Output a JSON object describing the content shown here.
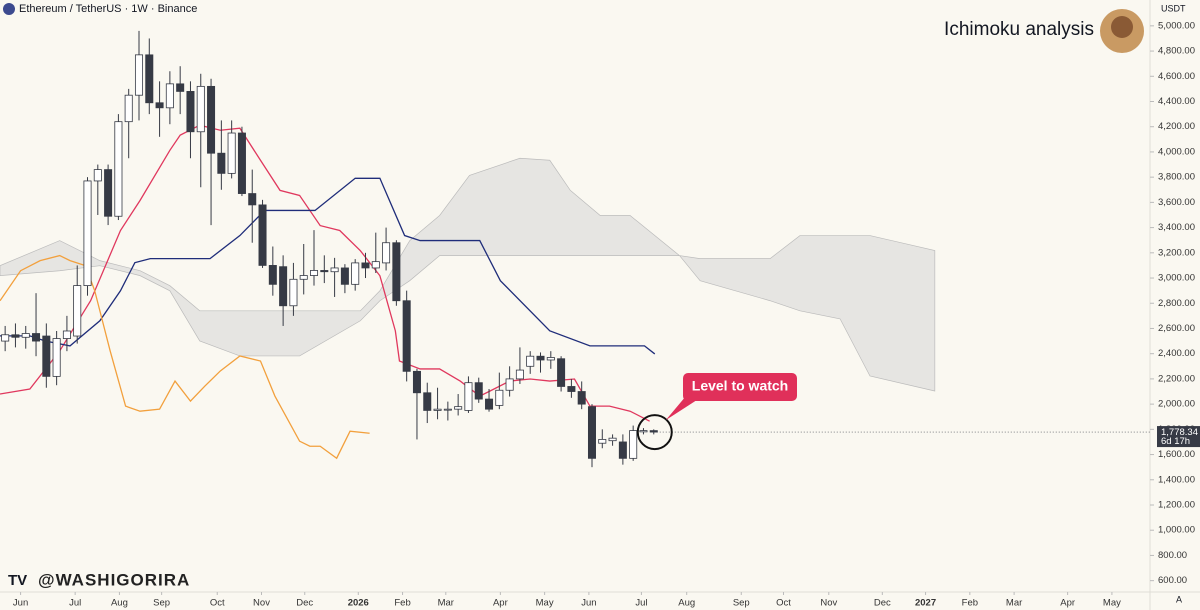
{
  "chart_data": {
    "type": "candlestick",
    "title": "Ichimoku analysis",
    "symbol": "Ethereum / TetherUS · 1W · Binance",
    "currency": "USDT",
    "watermark": "@WASHIGORIRA",
    "scale_mode": "A",
    "annotation": "Level to watch",
    "annotation_color": "#e0305a",
    "up_color": "#ffffff",
    "down_color": "#363a45",
    "border_color": "#363a45",
    "open": [
      2500,
      2550,
      2530,
      2560,
      2540,
      2220,
      2520,
      2540,
      2940,
      3770,
      3860,
      3490,
      4240,
      4450,
      4770,
      4390,
      4350,
      4540,
      4480,
      4160,
      4520,
      3990,
      3830,
      4150,
      3670,
      3580,
      3100,
      3090,
      2780,
      2990,
      3020,
      3060,
      3050,
      3080,
      2950,
      3120,
      3080,
      3120,
      3280,
      2820,
      2260,
      2090,
      1950,
      1960,
      1960,
      1950,
      2170,
      2040,
      1990,
      2110,
      2200,
      2300,
      2380,
      2350,
      2360,
      2140,
      2100,
      1980,
      1690,
      1710,
      1700,
      1570,
      1780,
      1790
    ],
    "high": [
      2620,
      2640,
      2620,
      2880,
      2640,
      2580,
      2700,
      3100,
      3800,
      3900,
      3900,
      4300,
      4500,
      4960,
      4900,
      4560,
      4640,
      4680,
      4560,
      4620,
      4580,
      4250,
      4250,
      4200,
      3860,
      3620,
      3250,
      3180,
      3120,
      3270,
      3380,
      3180,
      3160,
      3110,
      3150,
      3200,
      3360,
      3400,
      3300,
      2900,
      2280,
      2170,
      2130,
      2020,
      2080,
      2220,
      2210,
      2120,
      2250,
      2300,
      2450,
      2420,
      2410,
      2420,
      2380,
      2200,
      2180,
      2000,
      1800,
      1760,
      1760,
      1830,
      1810,
      1800
    ],
    "low": [
      2420,
      2450,
      2440,
      2380,
      2130,
      2150,
      2420,
      2480,
      2860,
      3500,
      3420,
      3460,
      3950,
      4250,
      4300,
      4120,
      4220,
      4300,
      3950,
      3720,
      3420,
      3700,
      3790,
      3650,
      3280,
      3080,
      2860,
      2620,
      2700,
      2870,
      2940,
      2960,
      2850,
      2880,
      2900,
      3000,
      3040,
      3060,
      2780,
      2180,
      1720,
      1850,
      1880,
      1870,
      1910,
      1930,
      2010,
      1940,
      1960,
      2060,
      2160,
      2240,
      2250,
      2280,
      2100,
      2050,
      1960,
      1500,
      1650,
      1670,
      1520,
      1550,
      1760,
      1760
    ],
    "close": [
      2550,
      2530,
      2560,
      2500,
      2220,
      2520,
      2580,
      2940,
      3770,
      3860,
      3490,
      4240,
      4450,
      4770,
      4390,
      4350,
      4540,
      4480,
      4160,
      4520,
      3990,
      3830,
      4150,
      3670,
      3580,
      3100,
      2950,
      2780,
      2990,
      3020,
      3060,
      3050,
      3080,
      2950,
      3120,
      3080,
      3130,
      3280,
      2820,
      2260,
      2090,
      1950,
      1960,
      1960,
      1980,
      2170,
      2040,
      1960,
      2110,
      2200,
      2270,
      2380,
      2350,
      2370,
      2140,
      2100,
      2000,
      1570,
      1720,
      1730,
      1570,
      1790,
      1790,
      1778.34
    ],
    "last_price": {
      "value": 1778.34,
      "label": "1,778.34"
    },
    "countdown": "6d 17h",
    "lines": [
      {
        "color": "#e0385e",
        "x": [
          -0.5,
          2.4,
          5.3,
          8.3,
          11.2,
          13.1,
          16.0,
          17.0,
          18.9,
          20.9,
          22.8,
          24.8,
          26.7,
          28.6,
          30.6,
          32.5,
          34.5,
          36.4,
          37.9,
          38.3,
          40.3,
          42.2,
          44.2,
          46.1,
          47.1,
          49.0,
          51.0,
          52.9,
          55.3,
          56.8,
          58.7,
          60.7,
          62.6
        ],
        "values": [
          2080,
          2120,
          2422,
          2820,
          3377,
          3615,
          4013,
          4133,
          4212,
          4172,
          4188,
          3934,
          3695,
          3655,
          3416,
          3377,
          3217,
          3018,
          2581,
          2342,
          2279,
          2279,
          2183,
          2064,
          2104,
          2183,
          2199,
          2183,
          2199,
          1984,
          1984,
          1944,
          1865
        ]
      },
      {
        "color": "#1f2d7a",
        "x": [
          -0.5,
          2.4,
          3.9,
          6.3,
          9.2,
          11.2,
          12.6,
          14.1,
          19.9,
          22.8,
          25.2,
          30.1,
          34.0,
          36.4,
          38.8,
          40.3,
          46.1,
          48.1,
          52.9,
          56.8,
          62.1,
          63.1
        ],
        "values": [
          2541,
          2541,
          2501,
          2462,
          2661,
          2899,
          3122,
          3154,
          3154,
          3337,
          3536,
          3536,
          3791,
          3791,
          3337,
          3297,
          3297,
          2979,
          2581,
          2462,
          2462,
          2398
        ]
      },
      {
        "color": "#f2a03d",
        "x": [
          -0.5,
          1.5,
          3.4,
          5.3,
          6.3,
          7.8,
          8.7,
          10.2,
          11.7,
          13.1,
          15.0,
          16.5,
          18.0,
          19.4,
          20.9,
          22.8,
          24.8,
          26.2,
          28.6,
          29.6,
          30.6,
          32.2,
          33.5,
          35.4
        ],
        "values": [
          2820,
          3058,
          3138,
          3178,
          3138,
          3098,
          2899,
          2422,
          1984,
          1944,
          1960,
          2183,
          2024,
          2143,
          2263,
          2382,
          2342,
          2064,
          1706,
          1666,
          1666,
          1571,
          1785,
          1769
        ]
      }
    ],
    "cloud": {
      "color": "#d9d9d9",
      "x": [
        -0.5,
        5.3,
        9.2,
        13.1,
        16.0,
        18.9,
        22.8,
        28.6,
        34.5,
        36.4,
        39.3,
        42.2,
        45.1,
        50.0,
        52.9,
        54.9,
        57.8,
        60.7,
        65.5,
        67.5,
        74.3,
        77.2,
        81.1,
        84.0,
        90.3
      ],
      "upper": [
        3098,
        3297,
        3138,
        3058,
        2939,
        2740,
        2740,
        2740,
        2740,
        2899,
        3297,
        3496,
        3814,
        3950,
        3934,
        3695,
        3496,
        3496,
        3178,
        3154,
        3154,
        3337,
        3337,
        3337,
        3218
      ],
      "lower": [
        3019,
        3058,
        3098,
        3019,
        2899,
        2501,
        2382,
        2382,
        2661,
        2820,
        2979,
        3178,
        3178,
        3178,
        3178,
        3178,
        3178,
        3178,
        3178,
        2979,
        2820,
        2740,
        2676,
        2223,
        2104
      ]
    },
    "xlim": [
      -0.5,
      111.2
    ],
    "xticks": [
      {
        "value": 1.5,
        "label": "Jun"
      },
      {
        "value": 6.8,
        "label": "Jul"
      },
      {
        "value": 11.1,
        "label": "Aug"
      },
      {
        "value": 15.2,
        "label": "Sep"
      },
      {
        "value": 20.6,
        "label": "Oct"
      },
      {
        "value": 24.9,
        "label": "Nov"
      },
      {
        "value": 29.1,
        "label": "Dec"
      },
      {
        "value": 34.3,
        "label": "2026"
      },
      {
        "value": 38.6,
        "label": "Feb"
      },
      {
        "value": 42.8,
        "label": "Mar"
      },
      {
        "value": 48.1,
        "label": "Apr"
      },
      {
        "value": 52.4,
        "label": "May"
      },
      {
        "value": 56.7,
        "label": "Jun"
      },
      {
        "value": 61.8,
        "label": "Jul"
      },
      {
        "value": 66.2,
        "label": "Aug"
      },
      {
        "value": 71.5,
        "label": "Sep"
      },
      {
        "value": 75.6,
        "label": "Oct"
      },
      {
        "value": 80.0,
        "label": "Nov"
      },
      {
        "value": 85.2,
        "label": "Dec"
      },
      {
        "value": 89.4,
        "label": "2027"
      },
      {
        "value": 93.7,
        "label": "Feb"
      },
      {
        "value": 98.0,
        "label": "Mar"
      },
      {
        "value": 103.2,
        "label": "Apr"
      },
      {
        "value": 107.5,
        "label": "May"
      }
    ],
    "ylim": [
      510,
      5205
    ],
    "yticks": [
      {
        "value": 600,
        "label": "600.00"
      },
      {
        "value": 800,
        "label": "800.00"
      },
      {
        "value": 1000,
        "label": "1,000.00"
      },
      {
        "value": 1200,
        "label": "1,200.00"
      },
      {
        "value": 1400,
        "label": "1,400.00"
      },
      {
        "value": 1600,
        "label": "1,600.00"
      },
      {
        "value": 1800,
        "label": "1,800.00"
      },
      {
        "value": 2000,
        "label": "2,000.00"
      },
      {
        "value": 2200,
        "label": "2,200.00"
      },
      {
        "value": 2400,
        "label": "2,400.00"
      },
      {
        "value": 2600,
        "label": "2,600.00"
      },
      {
        "value": 2800,
        "label": "2,800.00"
      },
      {
        "value": 3000,
        "label": "3,000.00"
      },
      {
        "value": 3200,
        "label": "3,200.00"
      },
      {
        "value": 3400,
        "label": "3,400.00"
      },
      {
        "value": 3600,
        "label": "3,600.00"
      },
      {
        "value": 3800,
        "label": "3,800.00"
      },
      {
        "value": 4000,
        "label": "4,000.00"
      },
      {
        "value": 4200,
        "label": "4,200.00"
      },
      {
        "value": 4400,
        "label": "4,400.00"
      },
      {
        "value": 4600,
        "label": "4,600.00"
      },
      {
        "value": 4800,
        "label": "4,800.00"
      },
      {
        "value": 5000,
        "label": "5,000.00"
      }
    ]
  }
}
